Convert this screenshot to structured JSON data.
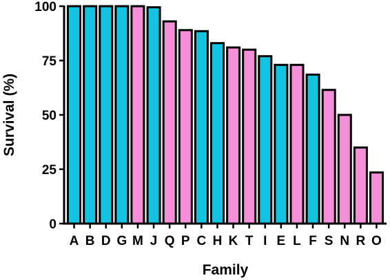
{
  "chart_data": {
    "type": "bar",
    "xlabel": "Family",
    "ylabel": "Survival (%)",
    "ylim": [
      0,
      100
    ],
    "yticks": [
      0,
      25,
      50,
      75,
      100
    ],
    "grid": false,
    "legend": "none",
    "colors": {
      "cyan": "#14c3e0",
      "pink": "#f58fd8",
      "edge": "#000000"
    },
    "categories": [
      "A",
      "B",
      "D",
      "G",
      "M",
      "J",
      "Q",
      "P",
      "C",
      "H",
      "K",
      "T",
      "I",
      "E",
      "L",
      "F",
      "S",
      "N",
      "R",
      "O"
    ],
    "values": [
      100,
      100,
      100,
      100,
      100,
      99.5,
      93,
      89,
      88.5,
      83,
      81,
      80,
      77,
      73,
      73,
      68.5,
      61.5,
      50,
      35,
      23.5
    ],
    "bar_colors": [
      "cyan",
      "cyan",
      "cyan",
      "cyan",
      "pink",
      "cyan",
      "pink",
      "pink",
      "cyan",
      "cyan",
      "pink",
      "pink",
      "cyan",
      "cyan",
      "pink",
      "cyan",
      "pink",
      "pink",
      "pink",
      "pink"
    ]
  }
}
